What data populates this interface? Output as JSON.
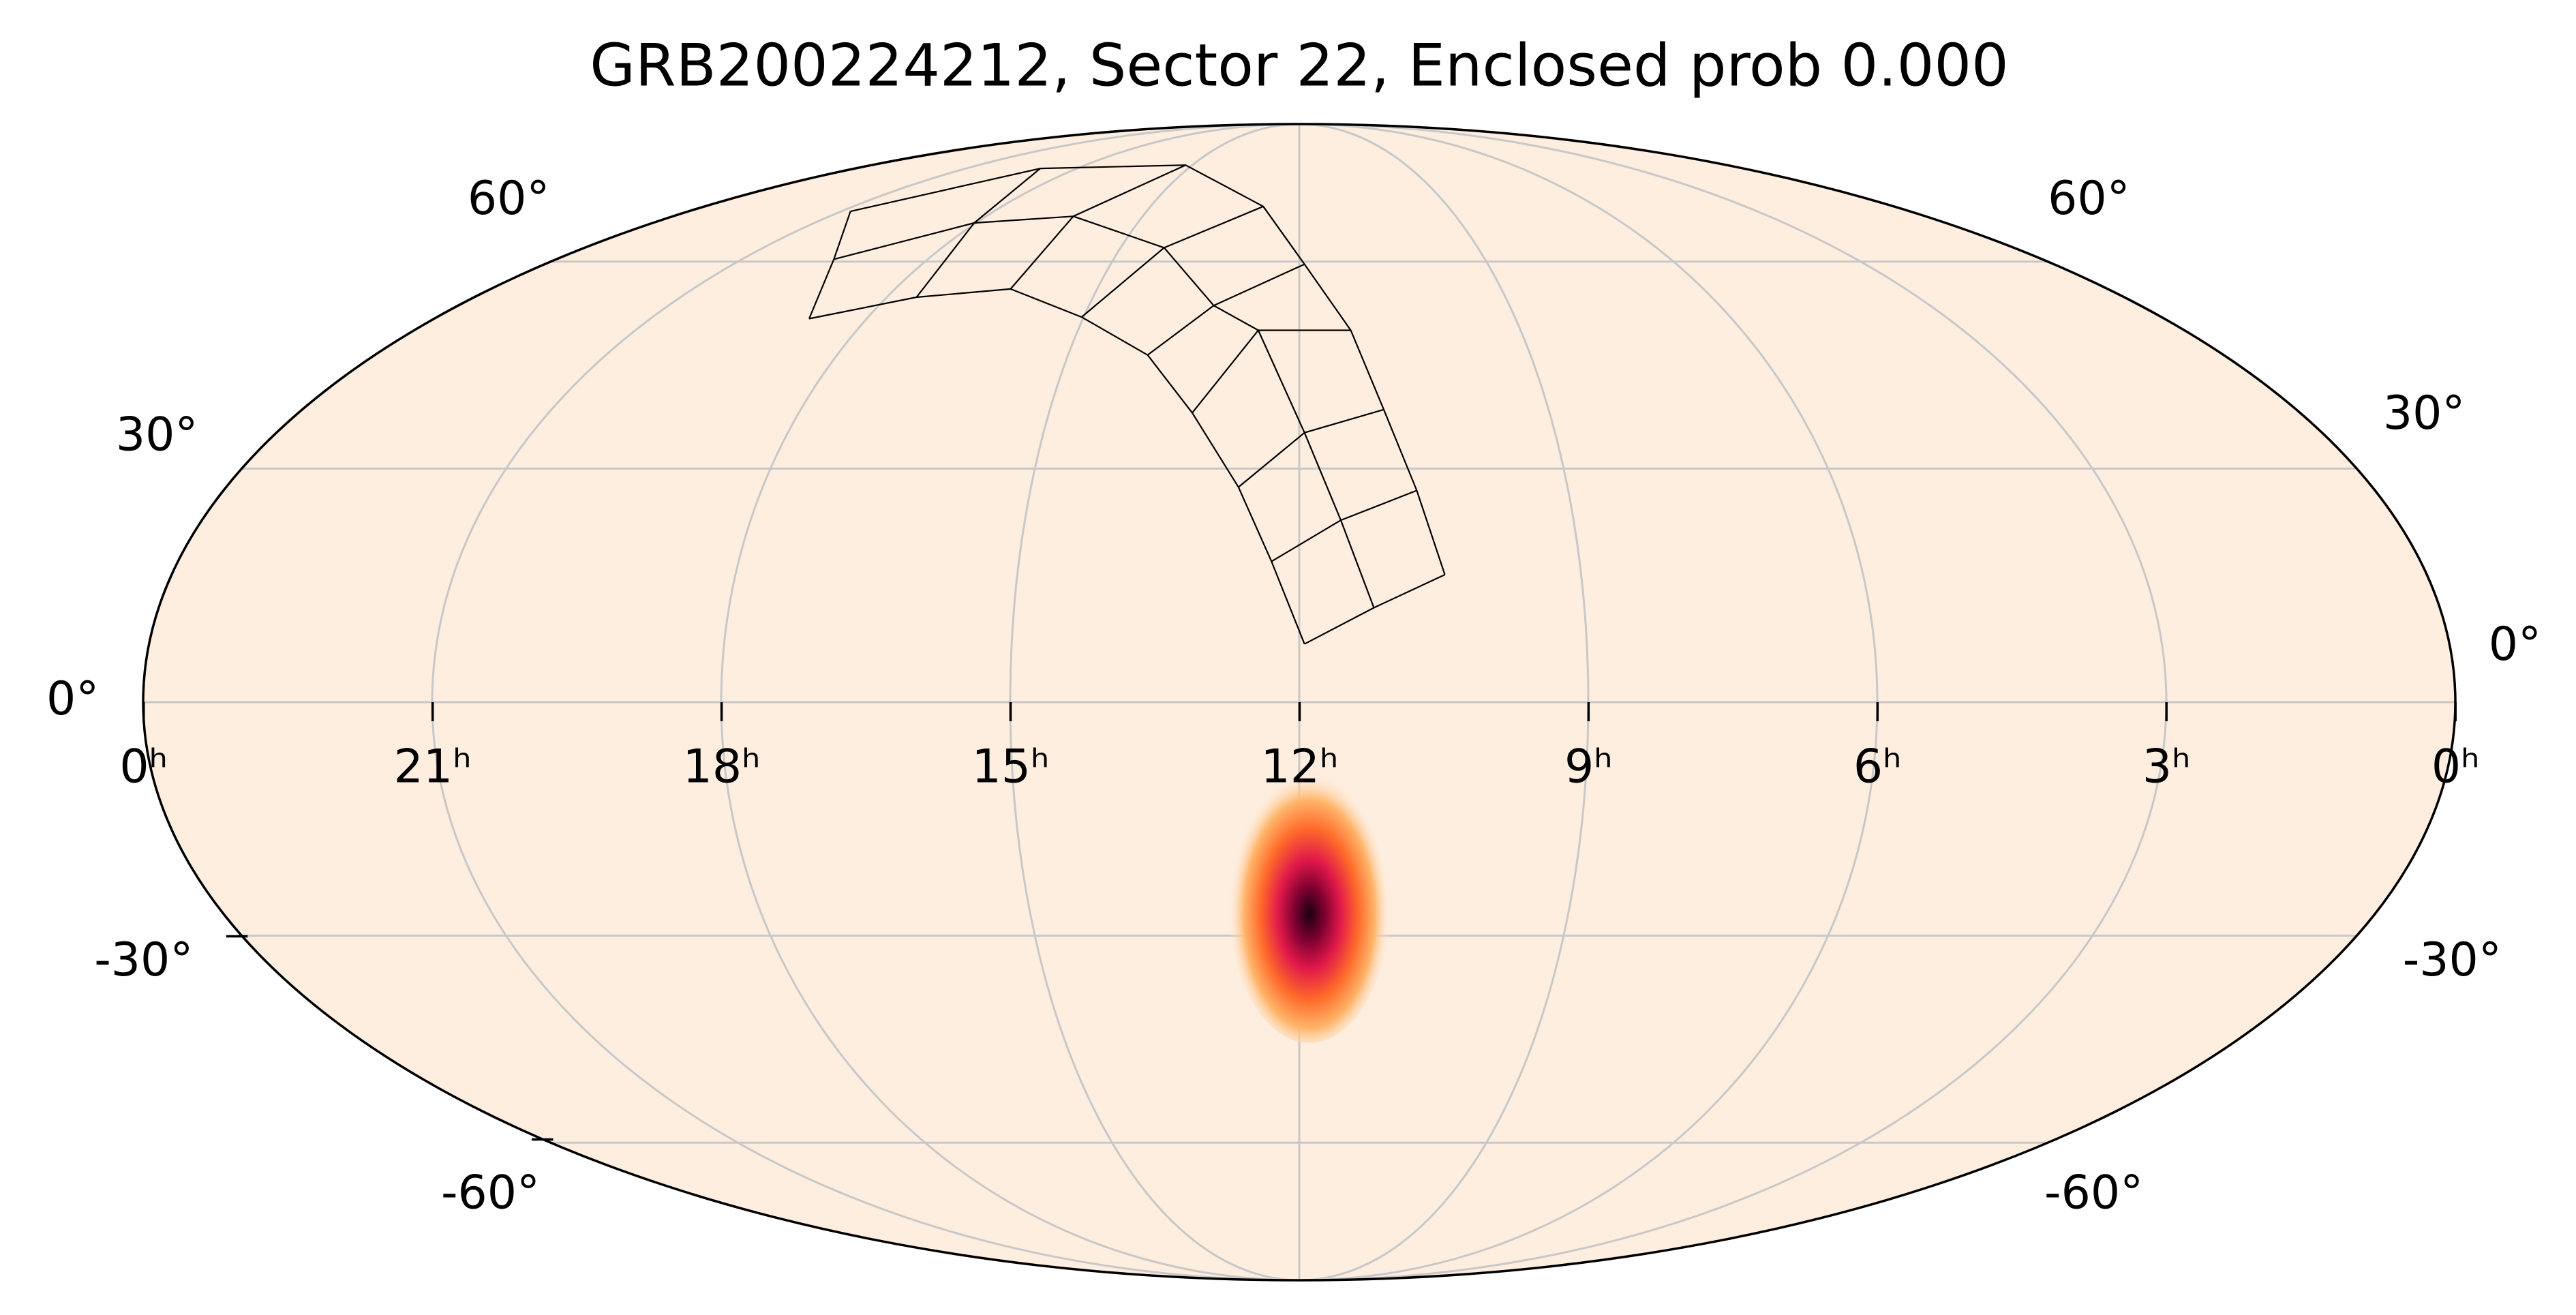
{
  "title": "GRB200224212, Sector 22, Enclosed prob 0.000",
  "ra_labels": [
    "0ʰ",
    "21ʰ",
    "18ʰ",
    "15ʰ",
    "12ʰ",
    "9ʰ",
    "6ʰ",
    "3ʰ",
    "0ʰ"
  ],
  "dec_labels": [
    "60°",
    "30°",
    "0°",
    "-30°",
    "-60°"
  ]
}
